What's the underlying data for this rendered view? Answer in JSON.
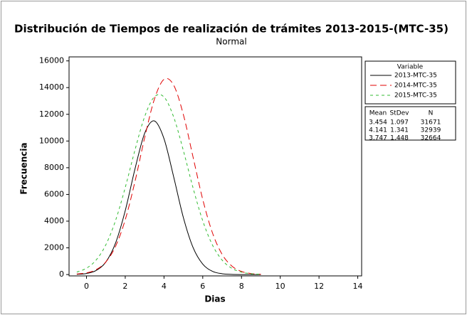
{
  "chart_data": {
    "type": "line",
    "title": "Distribución de Tiempos de realización de trámites 2013-2015-(MTC-35)",
    "subtitle": "Normal",
    "x_label": "Dias",
    "y_label": "Frecuencia",
    "x": [
      -0.5,
      0,
      0.5,
      1,
      1.5,
      2,
      2.5,
      3,
      3.5,
      4,
      4.5,
      5,
      5.5,
      6,
      6.5,
      7,
      7.5,
      8,
      8.5,
      9
    ],
    "series": [
      {
        "name": "2013-MTC-35",
        "color": "#000000",
        "dash": "none",
        "values": [
          17,
          81,
          307,
          943,
          2358,
          4786,
          7892,
          10574,
          11508,
          10175,
          7310,
          4266,
          2024,
          780,
          244,
          62,
          13,
          2,
          0,
          0
        ]
      },
      {
        "name": "2014-MTC-35",
        "color": "#e00000",
        "dash": "9 5",
        "values": [
          37,
          125,
          368,
          947,
          2113,
          4108,
          6952,
          10234,
          13110,
          14617,
          14179,
          11971,
          8795,
          5622,
          3128,
          1514,
          638,
          234,
          75,
          21
        ]
      },
      {
        "name": "2015-MTC-35",
        "color": "#33bb33",
        "dash": "4 4",
        "values": [
          183,
          475,
          1092,
          2233,
          4050,
          6519,
          9316,
          11819,
          13305,
          13296,
          11792,
          9283,
          6486,
          4024,
          2215,
          1083,
          470,
          181,
          62,
          19
        ]
      }
    ],
    "xlim": [
      -0.9,
      14.2
    ],
    "xticks": [
      0,
      2,
      4,
      6,
      8,
      10,
      12,
      14
    ],
    "ylim": [
      -100,
      16300
    ],
    "yticks": [
      0,
      2000,
      4000,
      6000,
      8000,
      10000,
      12000,
      14000,
      16000
    ],
    "legend_title": "Variable",
    "stats": {
      "headers": [
        "Mean",
        "StDev",
        "N"
      ],
      "rows": [
        [
          3.454,
          1.097,
          31671
        ],
        [
          4.141,
          1.341,
          32939
        ],
        [
          3.747,
          1.448,
          32664
        ]
      ]
    }
  }
}
